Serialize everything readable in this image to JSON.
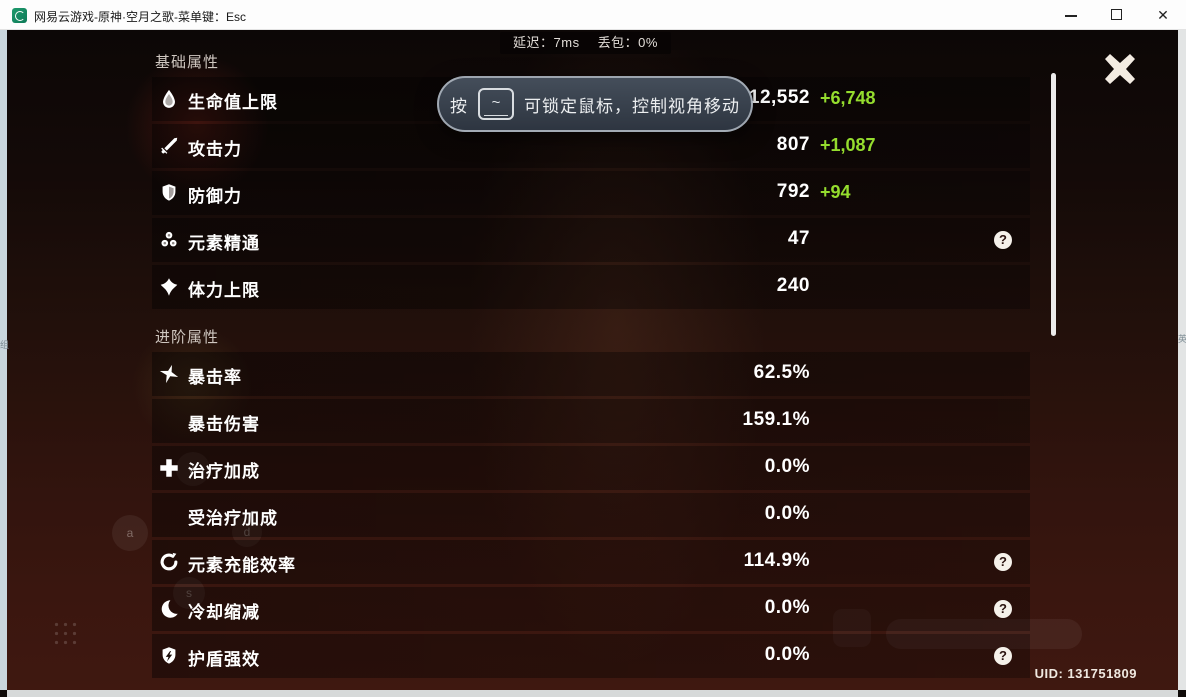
{
  "window": {
    "title": "网易云游戏-原神·空月之歌-菜单键：Esc",
    "controls": {
      "minimize": "minimize",
      "maximize": "maximize",
      "close": "✕"
    }
  },
  "status_bar": {
    "latency_label": "延迟：",
    "latency_value": "7ms",
    "packet_loss_label": "丢包：",
    "packet_loss_value": "0%"
  },
  "tooltip": {
    "prefix": "按",
    "key": "~",
    "text": "可锁定鼠标，控制视角移动"
  },
  "panel": {
    "sections": [
      {
        "title": "基础属性",
        "rows": [
          {
            "icon": "hp-droplet",
            "label": "生命值上限",
            "value": "12,552",
            "bonus": "+6,748",
            "help": false
          },
          {
            "icon": "attack-sword",
            "label": "攻击力",
            "value": "807",
            "bonus": "+1,087",
            "help": false
          },
          {
            "icon": "defense-shield",
            "label": "防御力",
            "value": "792",
            "bonus": "+94",
            "help": false
          },
          {
            "icon": "elemental-mastery",
            "label": "元素精通",
            "value": "47",
            "bonus": "",
            "help": true
          },
          {
            "icon": "stamina",
            "label": "体力上限",
            "value": "240",
            "bonus": "",
            "help": false
          }
        ]
      },
      {
        "title": "进阶属性",
        "rows": [
          {
            "icon": "crit-star",
            "label": "暴击率",
            "value": "62.5%",
            "bonus": "",
            "help": false
          },
          {
            "icon": "",
            "label": "暴击伤害",
            "value": "159.1%",
            "bonus": "",
            "help": false
          },
          {
            "icon": "healing-cross",
            "label": "治疗加成",
            "value": "0.0%",
            "bonus": "",
            "help": false
          },
          {
            "icon": "",
            "label": "受治疗加成",
            "value": "0.0%",
            "bonus": "",
            "help": false
          },
          {
            "icon": "energy-recharge",
            "label": "元素充能效率",
            "value": "114.9%",
            "bonus": "",
            "help": true
          },
          {
            "icon": "cooldown-moon",
            "label": "冷却缩减",
            "value": "0.0%",
            "bonus": "",
            "help": true
          },
          {
            "icon": "shield-strength",
            "label": "护盾强效",
            "value": "0.0%",
            "bonus": "",
            "help": true
          }
        ]
      }
    ],
    "help_glyph": "?"
  },
  "uid": "UID: 131751809",
  "overlay_keys": {
    "w": "w",
    "a": "a",
    "s": "s",
    "d": "d"
  },
  "desktop_edges": {
    "left_char": "组",
    "right_char": "英"
  },
  "colors": {
    "bonus_green": "#95dd2e",
    "titlebar_bg": "#fdfdfd",
    "logo_green": "#17946c"
  }
}
